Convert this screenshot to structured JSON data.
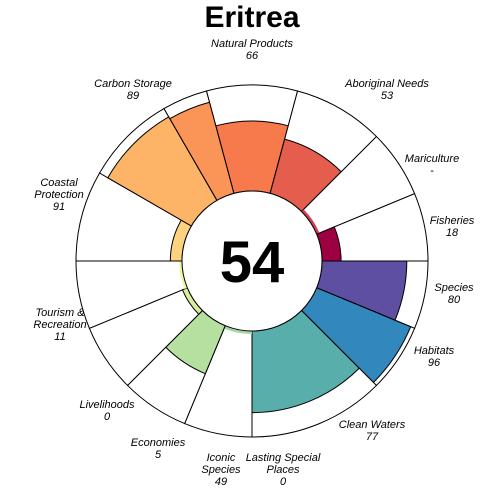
{
  "chart_data": {
    "type": "flower",
    "title": "Eritrea",
    "center_score": "54",
    "value_range": [
      0,
      100
    ],
    "petals": [
      {
        "label": "Natural Products",
        "value": 66,
        "value_text": "66",
        "color": "#f67a4b",
        "start_angle": -15,
        "end_angle": 15
      },
      {
        "label": "Aboriginal Needs",
        "value": 53,
        "value_text": "53",
        "color": "#e45d4d",
        "start_angle": 15,
        "end_angle": 45
      },
      {
        "label": "Mariculture",
        "value": null,
        "value_text": "-",
        "color": "#d53e4f",
        "start_angle": 45,
        "end_angle": 67.5
      },
      {
        "label": "Fisheries",
        "value": 18,
        "value_text": "18",
        "color": "#9e0142",
        "start_angle": 67.5,
        "end_angle": 90
      },
      {
        "label": "Species",
        "value": 80,
        "value_text": "80",
        "color": "#5e4fa2",
        "start_angle": 90,
        "end_angle": 112.5
      },
      {
        "label": "Habitats",
        "value": 96,
        "value_text": "96",
        "color": "#3288bd",
        "start_angle": 112.5,
        "end_angle": 135
      },
      {
        "label": "Clean Waters",
        "value": 77,
        "value_text": "77",
        "color": "#57aeaa",
        "start_angle": 135,
        "end_angle": 180
      },
      {
        "label": "Lasting Special Places",
        "value": 0,
        "value_text": "0",
        "color": "#9fd6a4",
        "start_angle": 180,
        "end_angle": 202.5
      },
      {
        "label": "Iconic Species",
        "value": 49,
        "value_text": "49",
        "color": "#b5e09f",
        "start_angle": 202.5,
        "end_angle": 225
      },
      {
        "label": "Economies",
        "value": 5,
        "value_text": "5",
        "color": "#d7ee9a",
        "start_angle": 225,
        "end_angle": 247.5
      },
      {
        "label": "Livelihoods",
        "value": 0,
        "value_text": "0",
        "color": "#f0f8a8",
        "start_angle": 247.5,
        "end_angle": 270
      },
      {
        "label": "Tourism & Recreation",
        "value": 11,
        "value_text": "11",
        "color": "#fed27f",
        "start_angle": 270,
        "end_angle": 300
      },
      {
        "label": "Coastal Protection",
        "value": 91,
        "value_text": "91",
        "color": "#fdb466",
        "start_angle": 300,
        "end_angle": 330
      },
      {
        "label": "Carbon Storage",
        "value": 89,
        "value_text": "89",
        "color": "#fa9457",
        "start_angle": 330,
        "end_angle": 345
      }
    ]
  }
}
